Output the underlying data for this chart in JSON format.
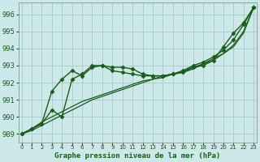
{
  "title": "Graphe pression niveau de la mer (hPa)",
  "bg_color": "#cce8e8",
  "grid_color": "#aacece",
  "line_color": "#1a5c1a",
  "xlim": [
    -0.3,
    23.3
  ],
  "ylim": [
    988.5,
    996.7
  ],
  "yticks": [
    989,
    990,
    991,
    992,
    993,
    994,
    995,
    996
  ],
  "xticks": [
    0,
    1,
    2,
    3,
    4,
    5,
    6,
    7,
    8,
    9,
    10,
    11,
    12,
    13,
    14,
    15,
    16,
    17,
    18,
    19,
    20,
    21,
    22,
    23
  ],
  "series": [
    {
      "x": [
        0,
        1,
        2,
        3,
        4,
        5,
        6,
        7,
        8,
        9,
        10,
        11,
        12,
        13,
        14,
        15,
        16,
        17,
        18,
        19,
        20,
        21,
        22,
        23
      ],
      "y": [
        989.0,
        989.3,
        989.6,
        991.5,
        992.2,
        992.7,
        992.4,
        992.9,
        993.0,
        992.9,
        992.9,
        992.8,
        992.5,
        992.4,
        992.4,
        992.5,
        992.6,
        992.9,
        993.0,
        993.3,
        994.1,
        994.9,
        995.5,
        996.4
      ],
      "marker": "D",
      "markersize": 2.5,
      "linewidth": 1.0
    },
    {
      "x": [
        0,
        1,
        2,
        3,
        4,
        5,
        6,
        7,
        8,
        9,
        10,
        11,
        12,
        13,
        14,
        15,
        16,
        17,
        18,
        19,
        20,
        21,
        22,
        23
      ],
      "y": [
        989.0,
        989.3,
        989.7,
        990.0,
        990.3,
        990.6,
        990.9,
        991.1,
        991.3,
        991.5,
        991.7,
        991.9,
        992.1,
        992.2,
        992.4,
        992.5,
        992.7,
        992.9,
        993.1,
        993.4,
        993.7,
        994.2,
        995.0,
        996.4
      ],
      "marker": null,
      "markersize": 0,
      "linewidth": 0.9
    },
    {
      "x": [
        0,
        1,
        2,
        3,
        4,
        5,
        6,
        7,
        8,
        9,
        10,
        11,
        12,
        13,
        14,
        15,
        16,
        17,
        18,
        19,
        20,
        21,
        22,
        23
      ],
      "y": [
        989.0,
        989.2,
        989.5,
        989.8,
        990.1,
        990.4,
        990.7,
        991.0,
        991.2,
        991.4,
        991.6,
        991.8,
        992.0,
        992.2,
        992.3,
        992.5,
        992.6,
        992.8,
        993.1,
        993.3,
        993.7,
        994.1,
        994.9,
        996.4
      ],
      "marker": null,
      "markersize": 0,
      "linewidth": 0.9
    },
    {
      "x": [
        0,
        1,
        2,
        3,
        4,
        5,
        6,
        7,
        8,
        9,
        10,
        11,
        12,
        13,
        14,
        15,
        16,
        17,
        18,
        19,
        20,
        21,
        22,
        23
      ],
      "y": [
        989.0,
        989.3,
        989.6,
        990.4,
        990.0,
        992.2,
        992.5,
        993.0,
        993.0,
        992.7,
        992.6,
        992.5,
        992.4,
        992.4,
        992.4,
        992.5,
        992.7,
        993.0,
        993.2,
        993.5,
        993.9,
        994.5,
        995.4,
        996.4
      ],
      "marker": "D",
      "markersize": 2.5,
      "linewidth": 1.0
    }
  ]
}
